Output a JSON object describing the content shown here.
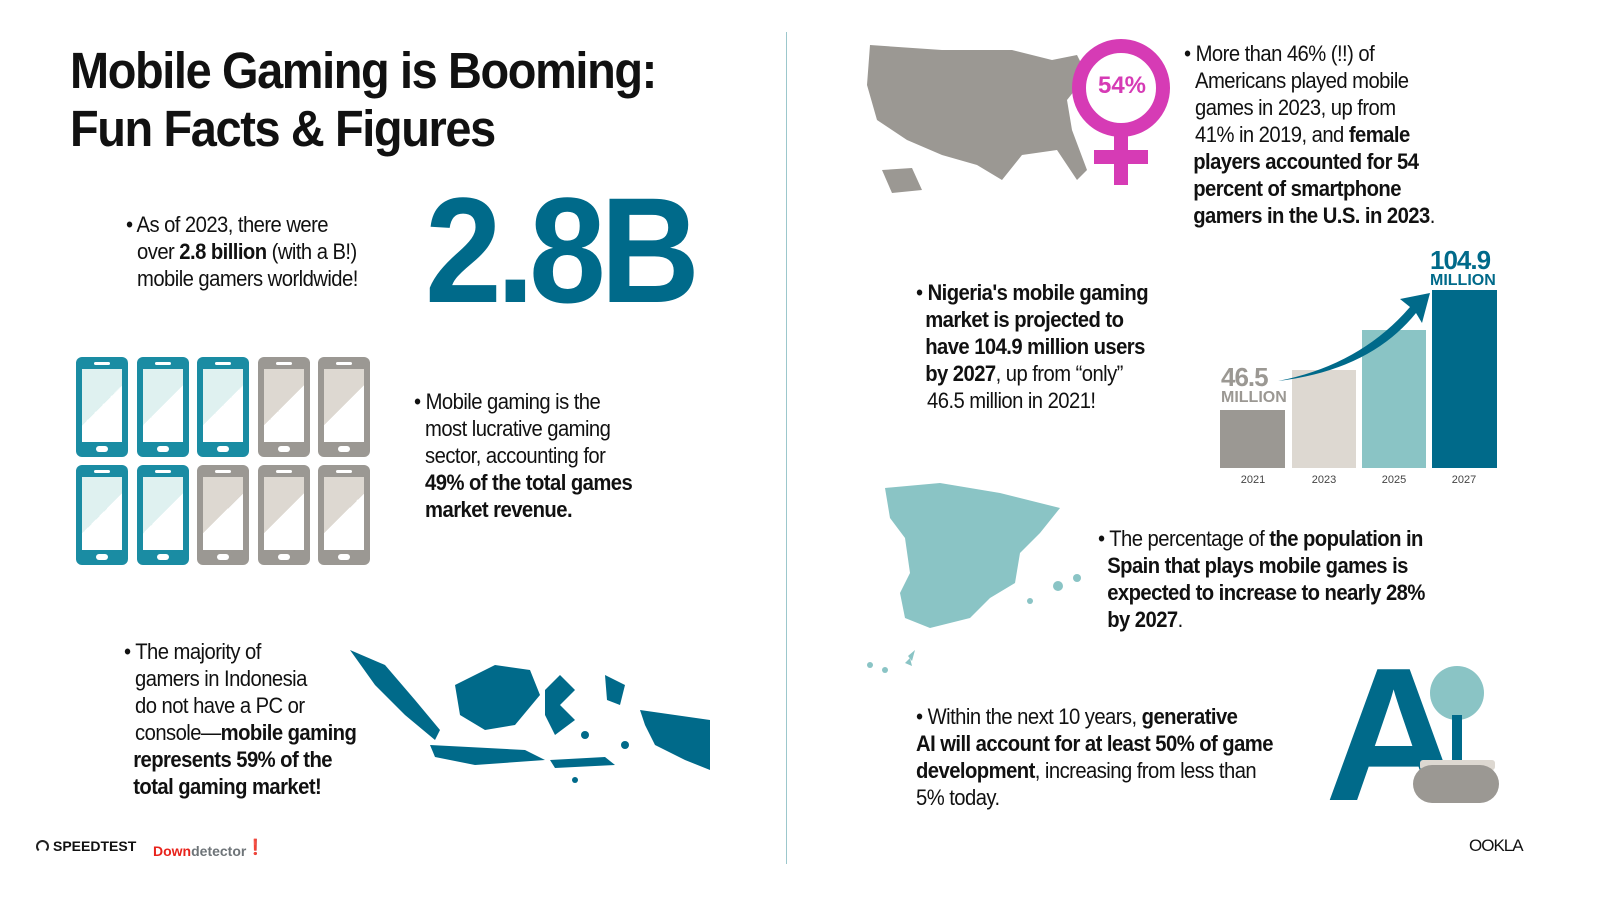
{
  "title": [
    "Mobile Gaming is Booming:",
    "Fun Facts & Figures"
  ],
  "stat_big": "2.8B",
  "fact_gamers": {
    "l1": "As of 2023, there were",
    "l2a": "over ",
    "l2b": "2.8 billion",
    "l2c": " (with a B!)",
    "l3": "mobile gamers worldwide!"
  },
  "phones": {
    "share_percent": 49,
    "teal_count": 5,
    "total": 10,
    "colors": {
      "teal": "#1a8ca3",
      "gray": "#9b9893"
    }
  },
  "fact_revenue": {
    "l1": "Mobile gaming is the",
    "l2": "most lucrative gaming",
    "l3": "sector, accounting for",
    "l4": "49% of the total games",
    "l5": "market revenue."
  },
  "fact_indonesia": {
    "l1": "The majority of",
    "l2": "gamers in Indonesia",
    "l3": "do not have a PC or",
    "l4a": "console—",
    "l4b": "mobile gaming",
    "l5": "represents 59% of the",
    "l6": "total gaming market!"
  },
  "fact_us": {
    "badge": "54%",
    "l1": "More than 46% (!!) of",
    "l2": "Americans played mobile",
    "l3": "games in 2023, up from",
    "l4a": "41% in 2019, and ",
    "l4b": "female",
    "l5": "players accounted for 54",
    "l6": "percent of smartphone",
    "l7": "gamers in the U.S. in 2023",
    "l7end": "."
  },
  "fact_nigeria": {
    "l1": "Nigeria's mobile gaming",
    "l2": "market is projected to",
    "l3": "have 104.9 million users",
    "l4a": "by 2027",
    "l4b": ", up from “only”",
    "l5": "46.5 million in 2021!"
  },
  "chart_data": {
    "type": "bar",
    "categories": [
      "2021",
      "2023",
      "2025",
      "2027"
    ],
    "values": [
      46.5,
      null,
      null,
      104.9
    ],
    "labels": [
      {
        "value": "46.5",
        "unit": "MILLION"
      },
      null,
      null,
      {
        "value": "104.9",
        "unit": "MILLION"
      }
    ],
    "colors": [
      "#9b9893",
      "#ddd8d1",
      "#8ac4c5",
      "#006a8a"
    ]
  },
  "fact_spain": {
    "l1a": "The percentage of ",
    "l1b": "the population in",
    "l2": "Spain that plays mobile games is",
    "l3": "expected to increase to nearly 28%",
    "l4": "by 2027",
    "l4end": "."
  },
  "fact_ai": {
    "l1a": "Within the next 10 years, ",
    "l1b": "generative",
    "l2": "AI will account for at least 50% of game",
    "l3a": "development",
    "l3b": ", increasing from less than",
    "l4": "5% today.",
    "icon_text": "A"
  },
  "footer": {
    "speedtest": "SPEEDTEST",
    "down": "Down",
    "detector": "detector",
    "ookla": "OOKLA"
  },
  "colors": {
    "teal": "#006a8a",
    "light_teal": "#8ac4c5",
    "gray": "#9b9893",
    "magenta": "#d63bb5"
  }
}
